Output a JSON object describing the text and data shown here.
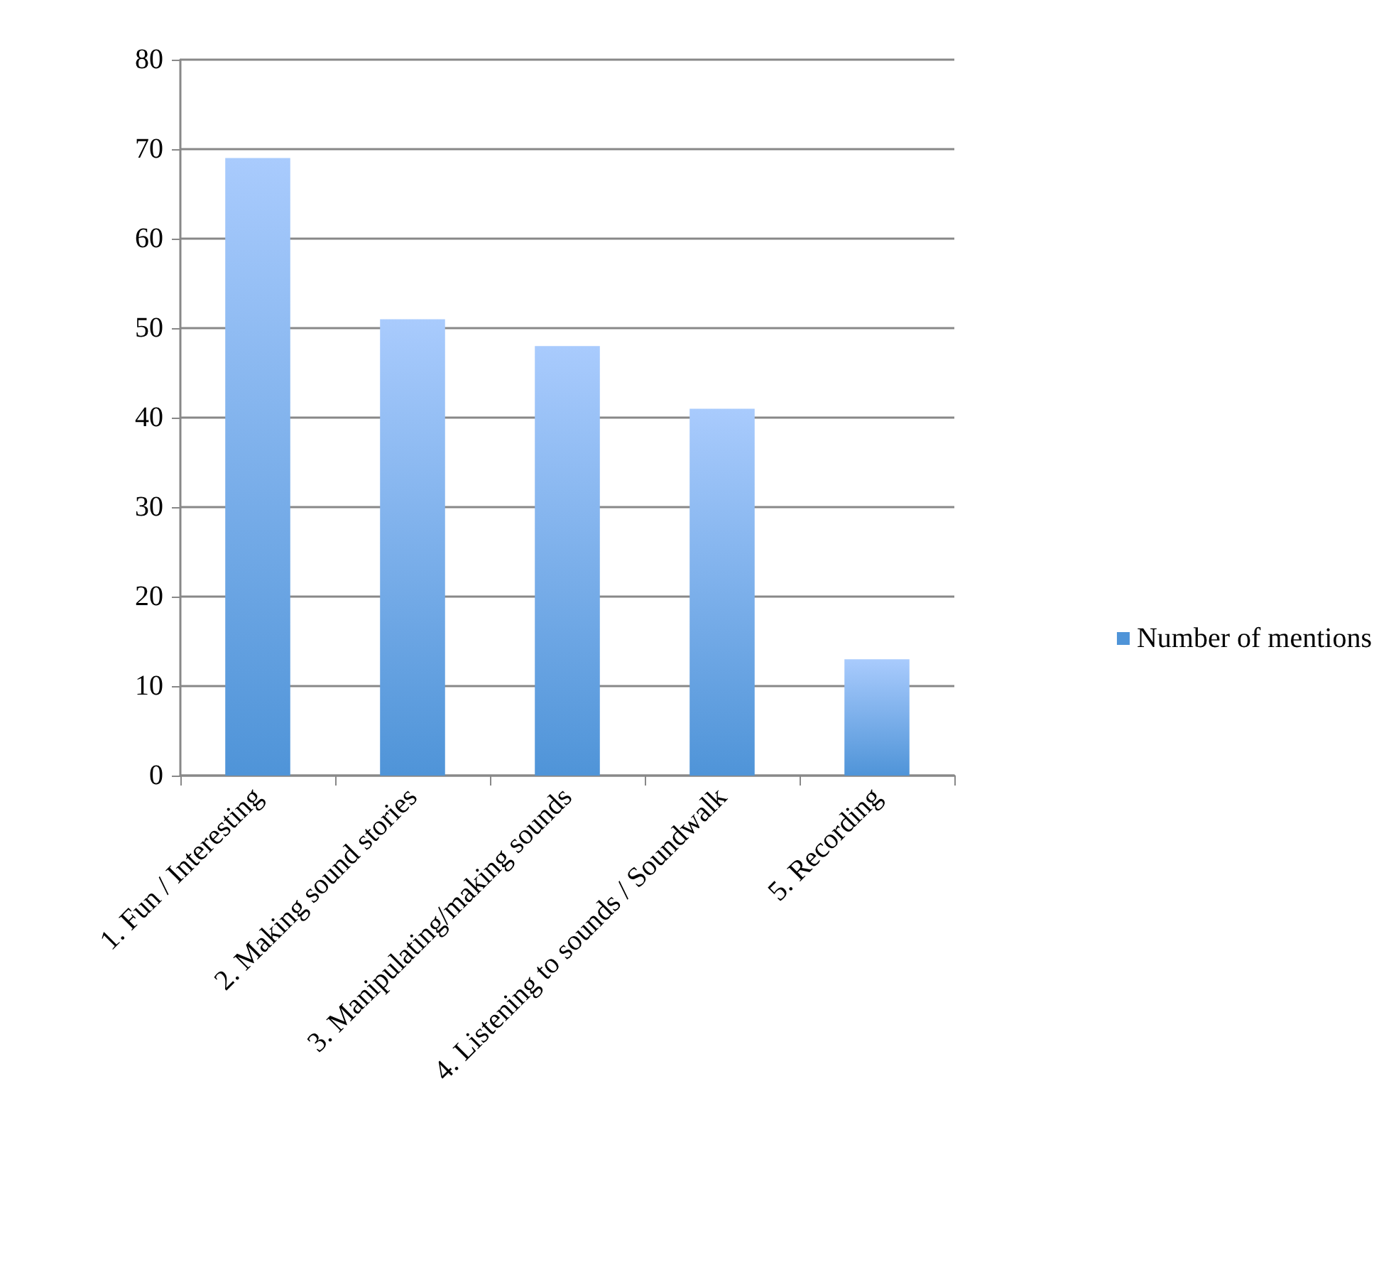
{
  "chart_data": {
    "type": "bar",
    "categories": [
      "1. Fun / Interesting",
      "2. Making sound stories",
      "3. Manipulating/making sounds",
      "4. Listening to sounds / Soundwalk",
      "5. Recording"
    ],
    "series": [
      {
        "name": "Number of mentions",
        "color": "#4f94d8",
        "values": [
          69,
          51,
          48,
          41,
          13
        ]
      }
    ],
    "ylim": [
      0,
      80
    ],
    "yticks": [
      0,
      10,
      20,
      30,
      40,
      50,
      60,
      70,
      80
    ],
    "grid": "y",
    "legend": "right"
  }
}
